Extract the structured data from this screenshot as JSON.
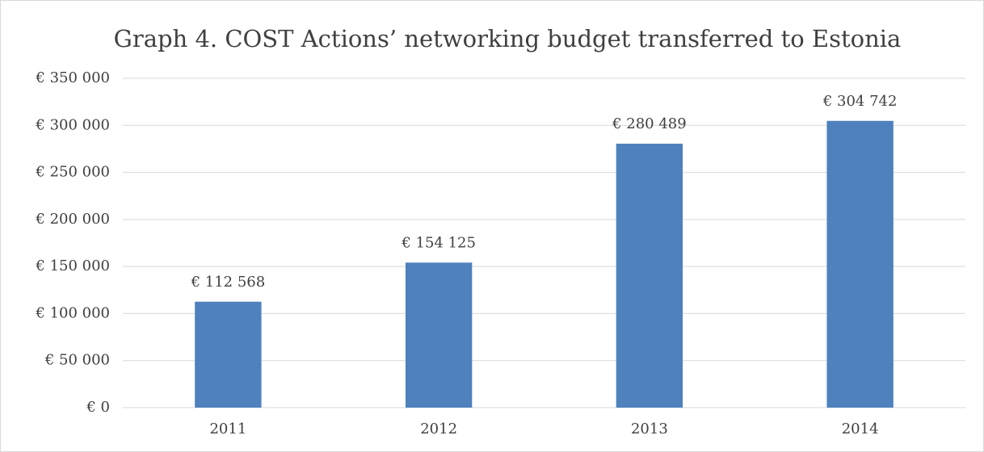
{
  "chart_data": {
    "type": "bar",
    "title": "Graph 4. COST Actions’ networking budget transferred to Estonia",
    "categories": [
      "2011",
      "2012",
      "2013",
      "2014"
    ],
    "values": [
      112568,
      154125,
      280489,
      304742
    ],
    "value_labels": [
      "€ 112 568",
      "€ 154 125",
      "€ 280 489",
      "€ 304 742"
    ],
    "color": "#4f81bd",
    "ylim": [
      0,
      350000
    ],
    "yticks": [
      {
        "value": 0,
        "label": "€ 0"
      },
      {
        "value": 50000,
        "label": "€ 50 000"
      },
      {
        "value": 100000,
        "label": "€ 100 000"
      },
      {
        "value": 150000,
        "label": "€ 150 000"
      },
      {
        "value": 200000,
        "label": "€ 200 000"
      },
      {
        "value": 250000,
        "label": "€ 250 000"
      },
      {
        "value": 300000,
        "label": "€ 300 000"
      },
      {
        "value": 350000,
        "label": "€ 350 000"
      }
    ],
    "grid": true
  }
}
